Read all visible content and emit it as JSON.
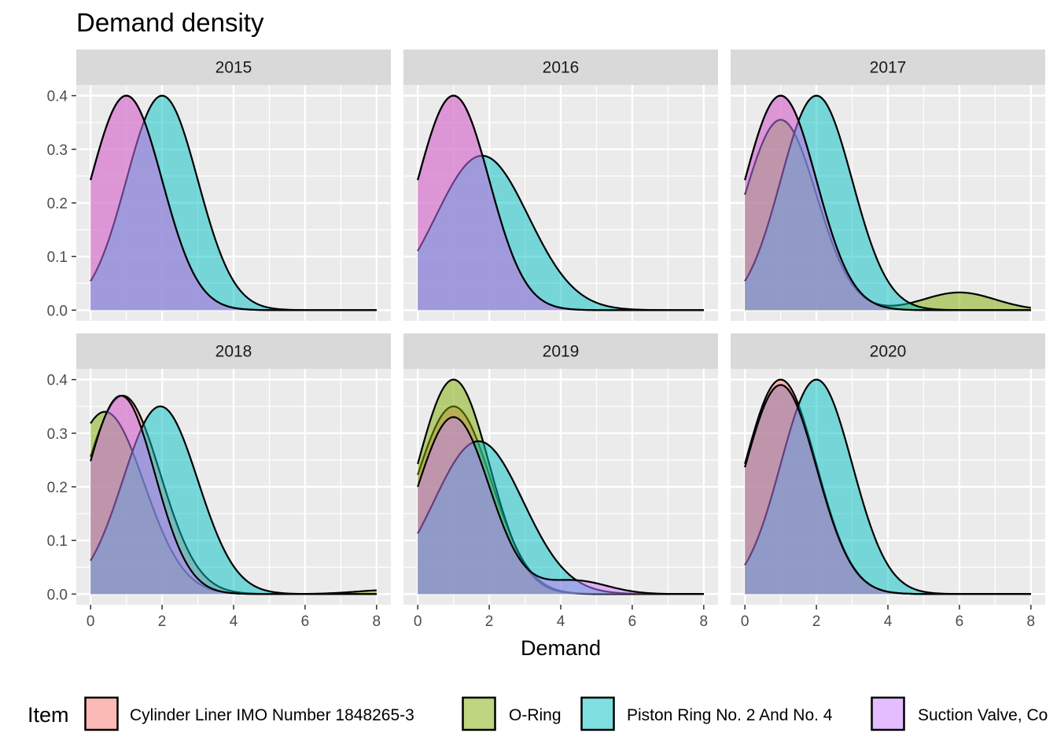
{
  "chart_data": {
    "type": "area",
    "subtype": "density",
    "title": "Demand density",
    "xlabel": "Demand",
    "ylabel": "",
    "xlim": [
      0,
      8
    ],
    "ylim": [
      0,
      0.4
    ],
    "x_ticks": [
      0,
      2,
      4,
      6,
      8
    ],
    "x_tick_labels": [
      "0",
      "2",
      "4",
      "6",
      "8"
    ],
    "y_ticks": [
      0,
      0.1,
      0.2,
      0.3,
      0.4
    ],
    "y_tick_labels": [
      "0.0",
      "0.1",
      "0.2",
      "0.3",
      "0.4"
    ],
    "grid": true,
    "legend_position": "bottom",
    "legend_title": "Item",
    "series_styles": [
      {
        "name": "Cylinder Liner IMO Number 1848265-3",
        "fill": "#F8766D",
        "opacity": 0.5
      },
      {
        "name": "O-Ring",
        "fill": "#7CAE00",
        "opacity": 0.5
      },
      {
        "name": "Piston Ring No. 2 And No. 4",
        "fill": "#00BFC4",
        "opacity": 0.5
      },
      {
        "name": "Suction Valve, Co",
        "fill": "#C77CFF",
        "opacity": 0.5
      }
    ],
    "panels": [
      {
        "label": "2015",
        "series": [
          {
            "name": "Cylinder Liner IMO Number 1848265-3",
            "peaks": [
              {
                "mu": 1.0,
                "sigma": 1.0,
                "height": 0.4
              }
            ]
          },
          {
            "name": "Piston Ring No. 2 And No. 4",
            "peaks": [
              {
                "mu": 2.0,
                "sigma": 1.0,
                "height": 0.4
              }
            ]
          },
          {
            "name": "Suction Valve, Co",
            "peaks": [
              {
                "mu": 1.0,
                "sigma": 1.0,
                "height": 0.4
              }
            ]
          }
        ]
      },
      {
        "label": "2016",
        "series": [
          {
            "name": "Cylinder Liner IMO Number 1848265-3",
            "peaks": [
              {
                "mu": 1.0,
                "sigma": 1.0,
                "height": 0.4
              }
            ]
          },
          {
            "name": "Piston Ring No. 2 And No. 4",
            "peaks": [
              {
                "mu": 1.8,
                "sigma": 1.3,
                "height": 0.288
              }
            ]
          },
          {
            "name": "Suction Valve, Co",
            "peaks": [
              {
                "mu": 1.0,
                "sigma": 1.0,
                "height": 0.4
              }
            ]
          }
        ]
      },
      {
        "label": "2017",
        "series": [
          {
            "name": "Cylinder Liner IMO Number 1848265-3",
            "peaks": [
              {
                "mu": 1.0,
                "sigma": 1.0,
                "height": 0.4
              }
            ]
          },
          {
            "name": "O-Ring",
            "peaks": [
              {
                "mu": 1.0,
                "sigma": 1.0,
                "height": 0.355
              },
              {
                "mu": 6.0,
                "sigma": 1.0,
                "height": 0.033
              }
            ]
          },
          {
            "name": "Piston Ring No. 2 And No. 4",
            "peaks": [
              {
                "mu": 2.0,
                "sigma": 1.0,
                "height": 0.4
              }
            ]
          },
          {
            "name": "Suction Valve, Co",
            "peaks": [
              {
                "mu": 1.0,
                "sigma": 1.0,
                "height": 0.4
              }
            ]
          }
        ]
      },
      {
        "label": "2018",
        "series": [
          {
            "name": "Cylinder Liner IMO Number 1848265-3",
            "peaks": [
              {
                "mu": 0.9,
                "sigma": 1.05,
                "height": 0.37
              }
            ]
          },
          {
            "name": "O-Ring",
            "peaks": [
              {
                "mu": 0.4,
                "sigma": 1.1,
                "height": 0.34
              },
              {
                "mu": 8.5,
                "sigma": 1.0,
                "height": 0.008
              }
            ]
          },
          {
            "name": "Piston Ring No. 2 And No. 4",
            "peaks": [
              {
                "mu": 1.95,
                "sigma": 1.05,
                "height": 0.35
              }
            ]
          },
          {
            "name": "Suction Valve, Co",
            "peaks": [
              {
                "mu": 0.85,
                "sigma": 0.95,
                "height": 0.37
              }
            ]
          }
        ]
      },
      {
        "label": "2019",
        "series": [
          {
            "name": "Cylinder Liner IMO Number 1848265-3",
            "peaks": [
              {
                "mu": 1.0,
                "sigma": 1.05,
                "height": 0.35
              }
            ]
          },
          {
            "name": "O-Ring",
            "peaks": [
              {
                "mu": 1.0,
                "sigma": 1.0,
                "height": 0.4
              }
            ]
          },
          {
            "name": "Piston Ring No. 2 And No. 4",
            "peaks": [
              {
                "mu": 1.7,
                "sigma": 1.25,
                "height": 0.285
              }
            ]
          },
          {
            "name": "Suction Valve, Co",
            "peaks": [
              {
                "mu": 1.0,
                "sigma": 1.0,
                "height": 0.33
              },
              {
                "mu": 4.4,
                "sigma": 0.9,
                "height": 0.025
              }
            ]
          }
        ]
      },
      {
        "label": "2020",
        "series": [
          {
            "name": "Cylinder Liner IMO Number 1848265-3",
            "peaks": [
              {
                "mu": 1.0,
                "sigma": 1.0,
                "height": 0.4
              }
            ]
          },
          {
            "name": "O-Ring",
            "peaks": [
              {
                "mu": 1.0,
                "sigma": 1.0,
                "height": 0.39
              }
            ]
          },
          {
            "name": "Piston Ring No. 2 And No. 4",
            "peaks": [
              {
                "mu": 2.0,
                "sigma": 1.0,
                "height": 0.4
              }
            ]
          },
          {
            "name": "Suction Valve, Co",
            "peaks": [
              {
                "mu": 1.0,
                "sigma": 1.0,
                "height": 0.39
              }
            ]
          }
        ]
      }
    ]
  }
}
